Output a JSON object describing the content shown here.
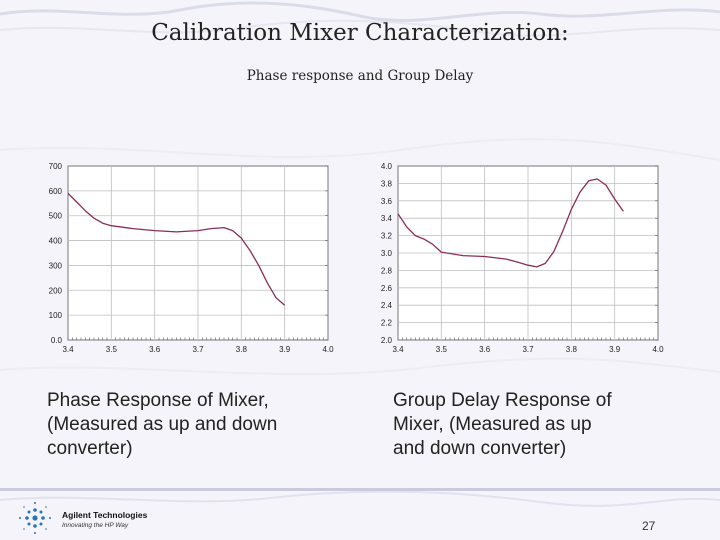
{
  "slide": {
    "title": "Calibration Mixer Characterization:",
    "subtitle": "Phase response and Group Delay",
    "captions": [
      [
        "Phase Response of Mixer,",
        "(Measured as up and down",
        "converter)"
      ],
      [
        "Group Delay Response of",
        "Mixer, (Measured as up",
        "and down converter)"
      ]
    ],
    "page_number": "27"
  },
  "logo": {
    "company": "Agilent Technologies",
    "tagline": "Innovating the HP Way"
  },
  "colors": {
    "trace": "#8b2d5a",
    "background": "#f4f4fa",
    "grid": "#bfbfbf"
  },
  "chart_data": [
    {
      "type": "line",
      "title": "",
      "xlabel": "",
      "ylabel": "",
      "xlim": [
        3.4,
        4.0
      ],
      "ylim": [
        0,
        700
      ],
      "x_ticks": [
        "3.4",
        "3.5",
        "3.6",
        "3.7",
        "3.8",
        "3.9",
        "4.0"
      ],
      "y_ticks": [
        "0.0",
        "100",
        "200",
        "300",
        "400",
        "500",
        "600",
        "700"
      ],
      "grid": true,
      "series": [
        {
          "name": "",
          "x": [
            3.4,
            3.42,
            3.44,
            3.46,
            3.48,
            3.5,
            3.55,
            3.6,
            3.65,
            3.7,
            3.73,
            3.76,
            3.78,
            3.8,
            3.82,
            3.84,
            3.86,
            3.88,
            3.9
          ],
          "values": [
            590,
            555,
            520,
            490,
            470,
            460,
            448,
            440,
            435,
            440,
            448,
            452,
            440,
            410,
            360,
            300,
            230,
            170,
            140
          ]
        }
      ]
    },
    {
      "type": "line",
      "title": "",
      "xlabel": "",
      "ylabel": "",
      "xlim": [
        3.4,
        4.0
      ],
      "ylim": [
        2.0,
        4.0
      ],
      "x_ticks": [
        "3.4",
        "3.5",
        "3.6",
        "3.7",
        "3.8",
        "3.9",
        "4.0"
      ],
      "y_ticks": [
        "2.0",
        "2.2",
        "2.4",
        "2.6",
        "2.8",
        "3.0",
        "3.2",
        "3.4",
        "3.6",
        "3.8",
        "4.0"
      ],
      "grid": true,
      "series": [
        {
          "name": "",
          "x": [
            3.4,
            3.42,
            3.44,
            3.46,
            3.48,
            3.5,
            3.55,
            3.6,
            3.65,
            3.68,
            3.7,
            3.72,
            3.74,
            3.76,
            3.78,
            3.8,
            3.82,
            3.84,
            3.86,
            3.88,
            3.9,
            3.92
          ],
          "values": [
            3.45,
            3.3,
            3.2,
            3.16,
            3.1,
            3.01,
            2.97,
            2.96,
            2.93,
            2.89,
            2.86,
            2.84,
            2.88,
            3.02,
            3.25,
            3.5,
            3.7,
            3.83,
            3.85,
            3.78,
            3.62,
            3.48
          ]
        }
      ]
    }
  ]
}
